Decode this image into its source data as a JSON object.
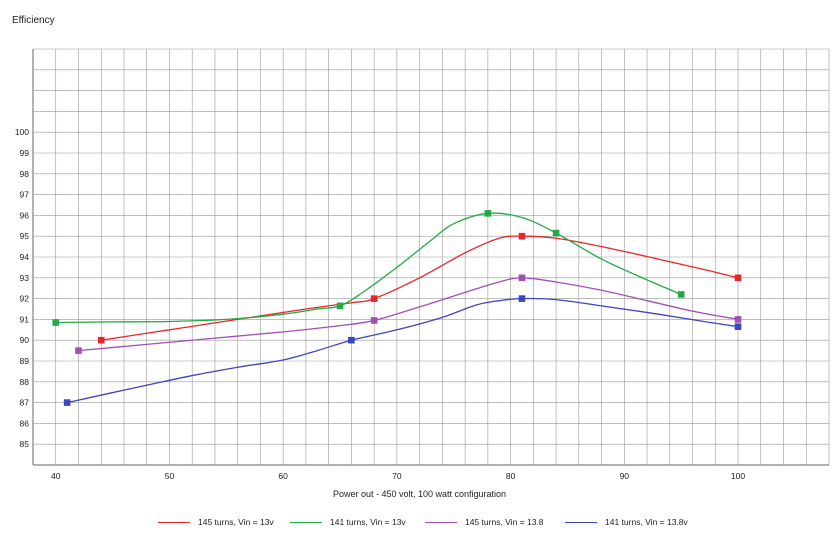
{
  "chart_data": {
    "type": "line",
    "title": "",
    "ylabel": "Efficiency",
    "xlabel": "Power out - 450 volt, 100 watt configuration",
    "xlim": [
      38,
      108
    ],
    "ylim": [
      84,
      104
    ],
    "x_ticks": [
      40,
      50,
      60,
      70,
      80,
      90,
      100
    ],
    "y_ticks": [
      85,
      86,
      87,
      88,
      89,
      90,
      91,
      92,
      93,
      94,
      95,
      96,
      97,
      98,
      99,
      100
    ],
    "grid": true,
    "legend_position": "bottom",
    "series": [
      {
        "name": "145 turns, Vin = 13v",
        "color": "#e8262a",
        "points": [
          [
            44,
            90.0
          ],
          [
            68,
            92.0
          ],
          [
            81,
            95.0
          ],
          [
            100,
            93.0
          ]
        ],
        "curve": [
          [
            44,
            90.0
          ],
          [
            50,
            90.5
          ],
          [
            56,
            91.0
          ],
          [
            62,
            91.5
          ],
          [
            66,
            91.8
          ],
          [
            68,
            92.0
          ],
          [
            72,
            93.0
          ],
          [
            76,
            94.2
          ],
          [
            79,
            94.9
          ],
          [
            81,
            95.0
          ],
          [
            84,
            94.9
          ],
          [
            88,
            94.5
          ],
          [
            93,
            93.9
          ],
          [
            97,
            93.4
          ],
          [
            100,
            93.0
          ]
        ]
      },
      {
        "name": "141 turns, Vin = 13v",
        "color": "#22aa44",
        "points": [
          [
            40,
            90.85
          ],
          [
            65,
            91.65
          ],
          [
            78,
            96.1
          ],
          [
            84,
            95.15
          ],
          [
            95,
            92.2
          ]
        ],
        "curve": [
          [
            40,
            90.85
          ],
          [
            45,
            90.88
          ],
          [
            50,
            90.9
          ],
          [
            55,
            91.0
          ],
          [
            60,
            91.25
          ],
          [
            63,
            91.5
          ],
          [
            65,
            91.65
          ],
          [
            67,
            92.3
          ],
          [
            70,
            93.5
          ],
          [
            73,
            94.8
          ],
          [
            75,
            95.6
          ],
          [
            78,
            96.1
          ],
          [
            81,
            95.9
          ],
          [
            84,
            95.15
          ],
          [
            88,
            93.9
          ],
          [
            92,
            92.9
          ],
          [
            95,
            92.2
          ]
        ]
      },
      {
        "name": "145 turns, Vin = 13.8",
        "color": "#a050b4",
        "points": [
          [
            42,
            89.5
          ],
          [
            68,
            90.95
          ],
          [
            81,
            93.0
          ],
          [
            100,
            91.0
          ]
        ],
        "curve": [
          [
            42,
            89.5
          ],
          [
            48,
            89.8
          ],
          [
            54,
            90.1
          ],
          [
            60,
            90.4
          ],
          [
            65,
            90.7
          ],
          [
            68,
            90.95
          ],
          [
            72,
            91.6
          ],
          [
            76,
            92.3
          ],
          [
            79,
            92.8
          ],
          [
            81,
            93.0
          ],
          [
            84,
            92.8
          ],
          [
            88,
            92.4
          ],
          [
            92,
            91.9
          ],
          [
            96,
            91.4
          ],
          [
            100,
            91.0
          ]
        ]
      },
      {
        "name": "141 turns, Vin = 13.8v",
        "color": "#3c46be",
        "points": [
          [
            41,
            87.0
          ],
          [
            66,
            90.0
          ],
          [
            81,
            92.0
          ],
          [
            100,
            90.65
          ]
        ],
        "curve": [
          [
            41,
            87.0
          ],
          [
            46,
            87.6
          ],
          [
            52,
            88.3
          ],
          [
            56,
            88.7
          ],
          [
            60,
            89.05
          ],
          [
            63,
            89.5
          ],
          [
            66,
            90.0
          ],
          [
            70,
            90.5
          ],
          [
            74,
            91.1
          ],
          [
            77,
            91.7
          ],
          [
            79,
            91.9
          ],
          [
            81,
            92.0
          ],
          [
            84,
            91.95
          ],
          [
            88,
            91.65
          ],
          [
            93,
            91.25
          ],
          [
            97,
            90.9
          ],
          [
            100,
            90.65
          ]
        ]
      }
    ]
  }
}
